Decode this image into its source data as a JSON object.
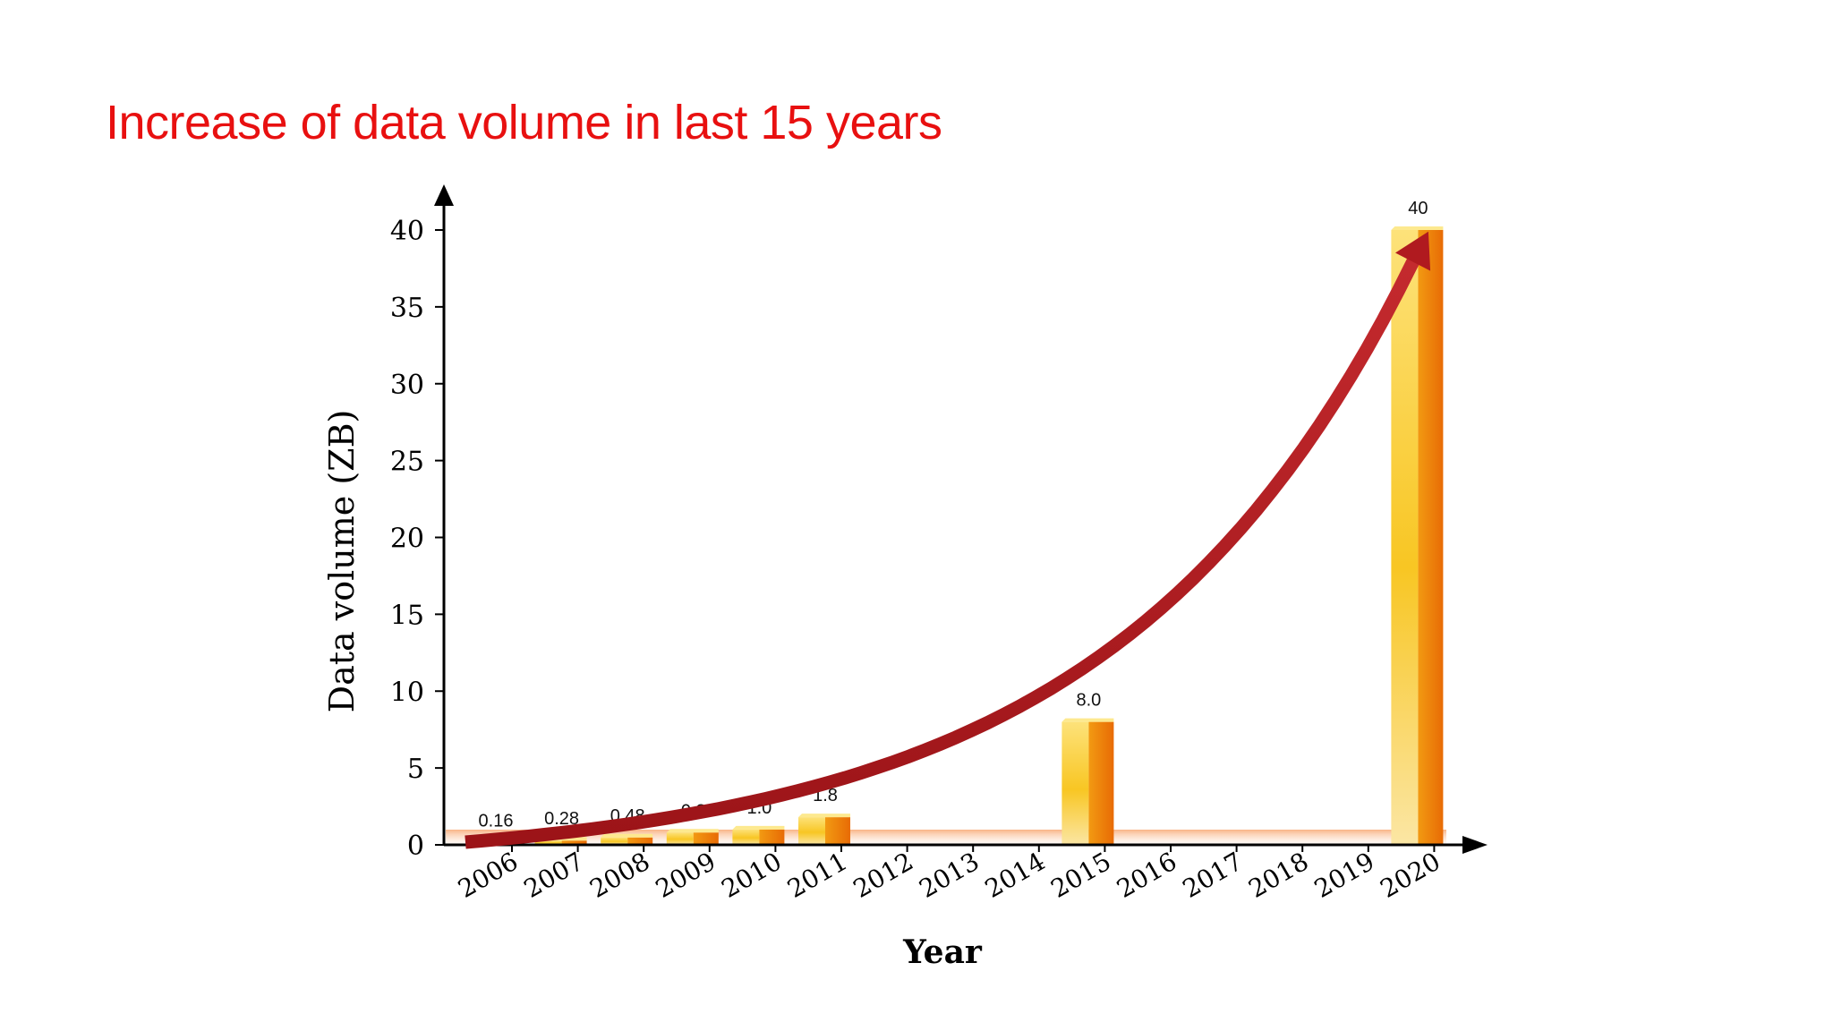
{
  "slide": {
    "title": "Increase of data volume in last 15 years"
  },
  "colors": {
    "title": "#e81010",
    "axis": "#000000",
    "arrow": "#b81e24",
    "bar_light": "#fde27a",
    "bar_mid": "#f7c21b",
    "bar_dark": "#ec7a0a",
    "floor": "#f6a773"
  },
  "chart_data": {
    "type": "bar",
    "categories": [
      "2006",
      "2007",
      "2008",
      "2009",
      "2010",
      "2011",
      "2012",
      "2013",
      "2014",
      "2015",
      "2016",
      "2017",
      "2018",
      "2019",
      "2020"
    ],
    "values": [
      0.16,
      0.28,
      0.48,
      0.8,
      1.0,
      1.8,
      null,
      null,
      null,
      8.0,
      null,
      null,
      null,
      null,
      40
    ],
    "data_labels": [
      "0.16",
      "0.28",
      "0.48",
      "0.8",
      "1.0",
      "1.8",
      "",
      "",
      "",
      "8.0",
      "",
      "",
      "",
      "",
      "40"
    ],
    "xlabel": "Year",
    "ylabel": "Data volume (ZB)",
    "ylim": [
      0,
      40
    ],
    "yticks": [
      0,
      5,
      10,
      15,
      20,
      25,
      30,
      35,
      40
    ],
    "trend_arrow": true,
    "grid": false,
    "legend": "none"
  }
}
